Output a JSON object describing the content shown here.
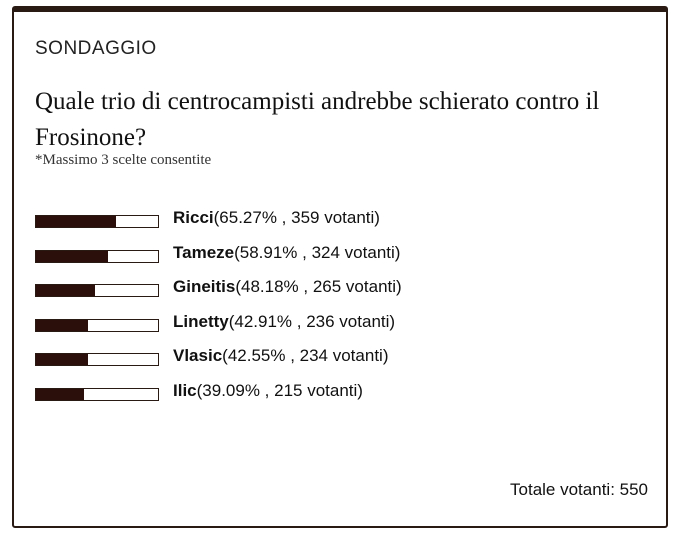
{
  "poll": {
    "label": "SONDAGGIO",
    "question": "Quale trio di centrocampisti andrebbe schierato contro il Frosinone?",
    "note": "*Massimo 3 scelte consentite",
    "options": [
      {
        "name": "Ricci",
        "stats": "(65.27% , 359 votanti)",
        "percent": 65.27
      },
      {
        "name": "Tameze",
        "stats": "(58.91% , 324 votanti)",
        "percent": 58.91
      },
      {
        "name": "Gineitis",
        "stats": "(48.18% , 265 votanti)",
        "percent": 48.18
      },
      {
        "name": "Linetty",
        "stats": "(42.91% , 236 votanti)",
        "percent": 42.91
      },
      {
        "name": "Vlasic",
        "stats": "(42.55% , 234 votanti)",
        "percent": 42.55
      },
      {
        "name": "Ilic",
        "stats": "(39.09% , 215 votanti)",
        "percent": 39.09
      }
    ],
    "total_text": "Totale votanti: 550"
  },
  "colors": {
    "bar_fill": "#2a0f0a",
    "border": "#2a1a14"
  }
}
